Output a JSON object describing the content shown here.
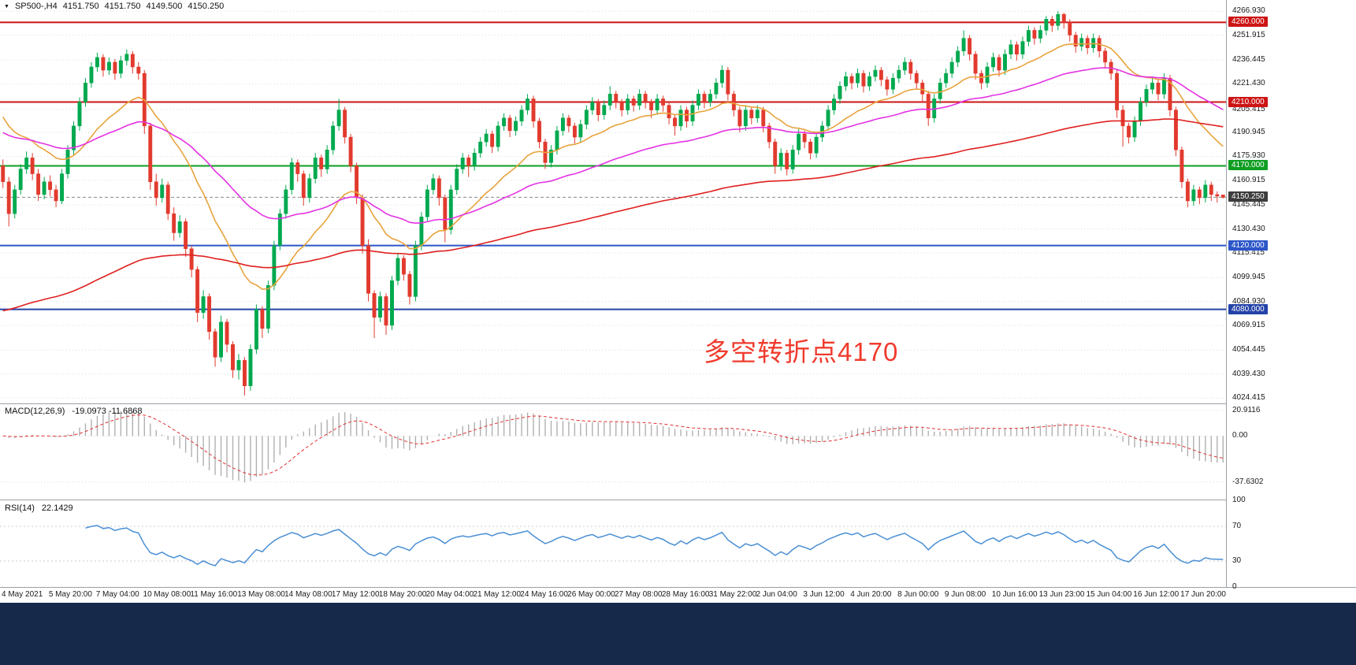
{
  "quote_bar": {
    "symbol": "SP500-,H4",
    "open": "4151.750",
    "high": "4151.750",
    "low": "4149.500",
    "close": "4150.250"
  },
  "annotation": {
    "text": "多空转折点4170",
    "color": "#f03b2e"
  },
  "colors": {
    "up": "#00a94f",
    "down": "#e23a2e",
    "ma_fast": "#e8a33d",
    "ma_mid": "#e333e3",
    "ma_slow": "#e02020",
    "macd_hist": "#b0b0b0",
    "macd_signal": "#e03030",
    "rsi_line": "#4a8fd4",
    "grid": "#dcdcdc"
  },
  "chart_data": {
    "type": "candlestick",
    "symbol": "SP500-",
    "timeframe": "H4",
    "price_range": [
      4024.415,
      4266.93
    ],
    "grid_prices": [
      4266.93,
      4251.915,
      4236.445,
      4221.43,
      4205.415,
      4190.945,
      4175.93,
      4160.915,
      4145.445,
      4130.43,
      4115.415,
      4099.945,
      4084.93,
      4069.915,
      4054.445,
      4039.43,
      4024.415
    ],
    "levels": [
      {
        "price": 4260.0,
        "label": "4260.000",
        "color": "#cc1414",
        "style": "solid",
        "width": 2
      },
      {
        "price": 4210.0,
        "label": "4210.000",
        "color": "#cc1414",
        "style": "solid",
        "width": 2
      },
      {
        "price": 4170.0,
        "label": "4170.000",
        "color": "#0f9d22",
        "style": "solid",
        "width": 2
      },
      {
        "price": 4120.0,
        "label": "4120.000",
        "color": "#2c56c9",
        "style": "solid",
        "width": 2
      },
      {
        "price": 4080.0,
        "label": "4080.000",
        "color": "#2443a8",
        "style": "solid",
        "width": 2
      },
      {
        "price": 4150.25,
        "label": "4150.250",
        "color": "#8a8a8a",
        "badge": "#3d3d3d",
        "style": "dashed",
        "width": 1,
        "current": true
      }
    ],
    "moving_averages": [
      {
        "name": "ma-fast",
        "period": 20,
        "seed": 4205,
        "color": "#e8a33d"
      },
      {
        "name": "ma-mid",
        "period": 55,
        "seed": 4192,
        "color": "#e333e3"
      },
      {
        "name": "ma-slow",
        "period": 150,
        "seed": 4078,
        "color": "#e02020"
      }
    ],
    "macd": {
      "label": "MACD(12,26,9)",
      "values_text": "-19.0973 -11.6868",
      "fast": 12,
      "slow": 26,
      "signal_period": 9,
      "axis_labels": [
        {
          "text": "20.9116",
          "value": 20.9116
        },
        {
          "text": "0.00",
          "value": 0
        },
        {
          "text": "-37.6302",
          "value": -37.6302
        }
      ]
    },
    "rsi": {
      "label": "RSI(14)",
      "value_text": "22.1429",
      "period": 14,
      "levels": [
        70,
        30
      ],
      "axis_labels": [
        {
          "text": "100",
          "value": 100
        },
        {
          "text": "70",
          "value": 70
        },
        {
          "text": "30",
          "value": 30
        },
        {
          "text": "0",
          "value": 0
        }
      ]
    },
    "time_labels": [
      "4 May 2021",
      "5 May 20:00",
      "7 May 04:00",
      "10 May 08:00",
      "11 May 16:00",
      "13 May 08:00",
      "14 May 08:00",
      "17 May 12:00",
      "18 May 20:00",
      "20 May 04:00",
      "21 May 12:00",
      "24 May 16:00",
      "26 May 00:00",
      "27 May 08:00",
      "28 May 16:00",
      "31 May 22:00",
      "2 Jun 04:00",
      "3 Jun 12:00",
      "4 Jun 20:00",
      "8 Jun 00:00",
      "9 Jun 08:00",
      "10 Jun 16:00",
      "13 Jun 23:00",
      "15 Jun 04:00",
      "16 Jun 12:00",
      "17 Jun 20:00"
    ],
    "candles": [
      [
        4170,
        4174,
        4156,
        4160
      ],
      [
        4160,
        4163,
        4132,
        4140
      ],
      [
        4140,
        4158,
        4137,
        4155
      ],
      [
        4155,
        4171,
        4152,
        4168
      ],
      [
        4168,
        4179,
        4165,
        4175
      ],
      [
        4175,
        4178,
        4161,
        4165
      ],
      [
        4165,
        4168,
        4148,
        4152
      ],
      [
        4152,
        4163,
        4149,
        4160
      ],
      [
        4160,
        4164,
        4151,
        4155
      ],
      [
        4155,
        4158,
        4144,
        4148
      ],
      [
        4148,
        4168,
        4146,
        4165
      ],
      [
        4165,
        4183,
        4162,
        4180
      ],
      [
        4180,
        4198,
        4177,
        4195
      ],
      [
        4195,
        4213,
        4192,
        4210
      ],
      [
        4210,
        4225,
        4207,
        4222
      ],
      [
        4222,
        4235,
        4219,
        4232
      ],
      [
        4232,
        4241,
        4229,
        4238
      ],
      [
        4238,
        4240,
        4226,
        4230
      ],
      [
        4230,
        4238,
        4227,
        4235
      ],
      [
        4235,
        4237,
        4224,
        4228
      ],
      [
        4228,
        4239,
        4225,
        4236
      ],
      [
        4236,
        4243,
        4233,
        4240
      ],
      [
        4240,
        4242,
        4228,
        4232
      ],
      [
        4232,
        4235,
        4224,
        4228
      ],
      [
        4228,
        4230,
        4190,
        4195
      ],
      [
        4195,
        4197,
        4155,
        4160
      ],
      [
        4160,
        4165,
        4145,
        4150
      ],
      [
        4150,
        4162,
        4147,
        4158
      ],
      [
        4158,
        4160,
        4136,
        4140
      ],
      [
        4140,
        4144,
        4123,
        4128
      ],
      [
        4128,
        4139,
        4125,
        4135
      ],
      [
        4135,
        4137,
        4113,
        4118
      ],
      [
        4118,
        4120,
        4100,
        4105
      ],
      [
        4105,
        4107,
        4072,
        4078
      ],
      [
        4078,
        4092,
        4074,
        4088
      ],
      [
        4088,
        4090,
        4061,
        4066
      ],
      [
        4066,
        4068,
        4044,
        4050
      ],
      [
        4050,
        4076,
        4047,
        4072
      ],
      [
        4072,
        4074,
        4053,
        4058
      ],
      [
        4058,
        4060,
        4037,
        4042
      ],
      [
        4042,
        4052,
        4036,
        4048
      ],
      [
        4048,
        4050,
        4026,
        4032
      ],
      [
        4032,
        4058,
        4029,
        4055
      ],
      [
        4055,
        4083,
        4052,
        4080
      ],
      [
        4080,
        4082,
        4062,
        4068
      ],
      [
        4068,
        4098,
        4065,
        4095
      ],
      [
        4095,
        4123,
        4092,
        4120
      ],
      [
        4120,
        4143,
        4117,
        4140
      ],
      [
        4140,
        4158,
        4137,
        4155
      ],
      [
        4155,
        4175,
        4152,
        4172
      ],
      [
        4172,
        4174,
        4160,
        4165
      ],
      [
        4165,
        4167,
        4145,
        4150
      ],
      [
        4150,
        4165,
        4147,
        4162
      ],
      [
        4162,
        4178,
        4159,
        4175
      ],
      [
        4175,
        4177,
        4163,
        4168
      ],
      [
        4168,
        4183,
        4165,
        4180
      ],
      [
        4180,
        4198,
        4177,
        4195
      ],
      [
        4195,
        4212,
        4192,
        4205
      ],
      [
        4205,
        4207,
        4184,
        4188
      ],
      [
        4188,
        4190,
        4166,
        4170
      ],
      [
        4170,
        4172,
        4146,
        4150
      ],
      [
        4150,
        4152,
        4115,
        4120
      ],
      [
        4120,
        4124,
        4085,
        4090
      ],
      [
        4090,
        4092,
        4062,
        4075
      ],
      [
        4075,
        4091,
        4072,
        4088
      ],
      [
        4088,
        4090,
        4064,
        4070
      ],
      [
        4070,
        4101,
        4067,
        4098
      ],
      [
        4098,
        4115,
        4095,
        4112
      ],
      [
        4112,
        4114,
        4098,
        4102
      ],
      [
        4102,
        4104,
        4083,
        4088
      ],
      [
        4088,
        4123,
        4085,
        4120
      ],
      [
        4120,
        4141,
        4117,
        4138
      ],
      [
        4138,
        4158,
        4135,
        4155
      ],
      [
        4155,
        4165,
        4152,
        4162
      ],
      [
        4162,
        4164,
        4145,
        4150
      ],
      [
        4150,
        4152,
        4122,
        4130
      ],
      [
        4130,
        4158,
        4127,
        4155
      ],
      [
        4155,
        4171,
        4152,
        4168
      ],
      [
        4168,
        4178,
        4165,
        4175
      ],
      [
        4175,
        4177,
        4163,
        4170
      ],
      [
        4170,
        4181,
        4167,
        4178
      ],
      [
        4178,
        4188,
        4175,
        4185
      ],
      [
        4185,
        4193,
        4182,
        4190
      ],
      [
        4190,
        4192,
        4178,
        4182
      ],
      [
        4182,
        4198,
        4179,
        4195
      ],
      [
        4195,
        4203,
        4192,
        4200
      ],
      [
        4200,
        4202,
        4188,
        4192
      ],
      [
        4192,
        4201,
        4189,
        4198
      ],
      [
        4198,
        4208,
        4195,
        4205
      ],
      [
        4205,
        4215,
        4202,
        4212
      ],
      [
        4212,
        4214,
        4194,
        4198
      ],
      [
        4198,
        4200,
        4181,
        4185
      ],
      [
        4185,
        4187,
        4168,
        4172
      ],
      [
        4172,
        4183,
        4169,
        4180
      ],
      [
        4180,
        4195,
        4177,
        4192
      ],
      [
        4192,
        4203,
        4189,
        4200
      ],
      [
        4200,
        4202,
        4191,
        4195
      ],
      [
        4195,
        4197,
        4184,
        4188
      ],
      [
        4188,
        4199,
        4185,
        4196
      ],
      [
        4196,
        4208,
        4193,
        4205
      ],
      [
        4205,
        4213,
        4202,
        4210
      ],
      [
        4210,
        4212,
        4198,
        4202
      ],
      [
        4202,
        4211,
        4199,
        4208
      ],
      [
        4208,
        4220,
        4205,
        4215
      ],
      [
        4215,
        4217,
        4206,
        4210
      ],
      [
        4210,
        4212,
        4201,
        4205
      ],
      [
        4205,
        4215,
        4202,
        4212
      ],
      [
        4212,
        4214,
        4204,
        4208
      ],
      [
        4208,
        4218,
        4205,
        4215
      ],
      [
        4215,
        4217,
        4206,
        4210
      ],
      [
        4210,
        4212,
        4200,
        4205
      ],
      [
        4205,
        4215,
        4202,
        4212
      ],
      [
        4212,
        4214,
        4204,
        4208
      ],
      [
        4208,
        4210,
        4196,
        4200
      ],
      [
        4200,
        4202,
        4189,
        4195
      ],
      [
        4195,
        4208,
        4192,
        4205
      ],
      [
        4205,
        4207,
        4194,
        4198
      ],
      [
        4198,
        4211,
        4195,
        4208
      ],
      [
        4208,
        4218,
        4205,
        4215
      ],
      [
        4215,
        4217,
        4206,
        4210
      ],
      [
        4210,
        4218,
        4207,
        4215
      ],
      [
        4215,
        4225,
        4212,
        4222
      ],
      [
        4222,
        4233,
        4219,
        4230
      ],
      [
        4230,
        4232,
        4211,
        4215
      ],
      [
        4215,
        4217,
        4201,
        4205
      ],
      [
        4205,
        4207,
        4191,
        4195
      ],
      [
        4195,
        4208,
        4192,
        4205
      ],
      [
        4205,
        4207,
        4196,
        4200
      ],
      [
        4200,
        4208,
        4197,
        4205
      ],
      [
        4205,
        4207,
        4191,
        4195
      ],
      [
        4195,
        4197,
        4181,
        4185
      ],
      [
        4185,
        4187,
        4165,
        4170
      ],
      [
        4170,
        4181,
        4167,
        4178
      ],
      [
        4178,
        4180,
        4164,
        4168
      ],
      [
        4168,
        4183,
        4165,
        4180
      ],
      [
        4180,
        4193,
        4177,
        4190
      ],
      [
        4190,
        4192,
        4181,
        4185
      ],
      [
        4185,
        4187,
        4174,
        4178
      ],
      [
        4178,
        4191,
        4175,
        4188
      ],
      [
        4188,
        4198,
        4185,
        4195
      ],
      [
        4195,
        4208,
        4192,
        4205
      ],
      [
        4205,
        4215,
        4202,
        4212
      ],
      [
        4212,
        4223,
        4209,
        4220
      ],
      [
        4220,
        4229,
        4217,
        4226
      ],
      [
        4226,
        4228,
        4218,
        4222
      ],
      [
        4222,
        4231,
        4219,
        4228
      ],
      [
        4228,
        4230,
        4216,
        4220
      ],
      [
        4220,
        4229,
        4217,
        4226
      ],
      [
        4226,
        4233,
        4223,
        4230
      ],
      [
        4230,
        4232,
        4220,
        4224
      ],
      [
        4224,
        4226,
        4214,
        4218
      ],
      [
        4218,
        4228,
        4215,
        4225
      ],
      [
        4225,
        4233,
        4222,
        4230
      ],
      [
        4230,
        4238,
        4227,
        4235
      ],
      [
        4235,
        4237,
        4224,
        4228
      ],
      [
        4228,
        4230,
        4218,
        4222
      ],
      [
        4222,
        4224,
        4210,
        4215
      ],
      [
        4215,
        4217,
        4195,
        4200
      ],
      [
        4200,
        4215,
        4197,
        4212
      ],
      [
        4212,
        4225,
        4209,
        4222
      ],
      [
        4222,
        4231,
        4219,
        4228
      ],
      [
        4228,
        4238,
        4225,
        4235
      ],
      [
        4235,
        4245,
        4232,
        4242
      ],
      [
        4242,
        4255,
        4239,
        4250
      ],
      [
        4250,
        4252,
        4236,
        4240
      ],
      [
        4240,
        4242,
        4224,
        4228
      ],
      [
        4228,
        4230,
        4218,
        4222
      ],
      [
        4222,
        4235,
        4219,
        4232
      ],
      [
        4232,
        4241,
        4229,
        4238
      ],
      [
        4238,
        4240,
        4226,
        4230
      ],
      [
        4230,
        4243,
        4227,
        4240
      ],
      [
        4240,
        4249,
        4237,
        4246
      ],
      [
        4246,
        4248,
        4236,
        4240
      ],
      [
        4240,
        4251,
        4237,
        4248
      ],
      [
        4248,
        4258,
        4245,
        4255
      ],
      [
        4255,
        4257,
        4246,
        4250
      ],
      [
        4250,
        4258,
        4247,
        4255
      ],
      [
        4255,
        4264,
        4252,
        4262
      ],
      [
        4262,
        4264,
        4254,
        4258
      ],
      [
        4258,
        4267,
        4255,
        4265
      ],
      [
        4265,
        4266,
        4256,
        4260
      ],
      [
        4260,
        4262,
        4248,
        4252
      ],
      [
        4252,
        4254,
        4241,
        4245
      ],
      [
        4245,
        4253,
        4242,
        4250
      ],
      [
        4250,
        4252,
        4240,
        4244
      ],
      [
        4244,
        4253,
        4241,
        4250
      ],
      [
        4250,
        4252,
        4238,
        4242
      ],
      [
        4242,
        4244,
        4231,
        4235
      ],
      [
        4235,
        4237,
        4224,
        4228
      ],
      [
        4228,
        4230,
        4200,
        4205
      ],
      [
        4205,
        4208,
        4182,
        4195
      ],
      [
        4195,
        4197,
        4184,
        4188
      ],
      [
        4188,
        4201,
        4185,
        4198
      ],
      [
        4198,
        4213,
        4195,
        4210
      ],
      [
        4210,
        4221,
        4207,
        4218
      ],
      [
        4218,
        4226,
        4215,
        4222
      ],
      [
        4222,
        4224,
        4211,
        4215
      ],
      [
        4215,
        4228,
        4212,
        4225
      ],
      [
        4225,
        4227,
        4201,
        4205
      ],
      [
        4205,
        4207,
        4176,
        4180
      ],
      [
        4180,
        4182,
        4156,
        4160
      ],
      [
        4160,
        4162,
        4144,
        4148
      ],
      [
        4148,
        4158,
        4145,
        4155
      ],
      [
        4155,
        4157,
        4146,
        4150
      ],
      [
        4150,
        4161,
        4147,
        4158
      ],
      [
        4158,
        4160,
        4148,
        4152
      ],
      [
        4152,
        4154,
        4147,
        4151
      ],
      [
        4151.75,
        4151.75,
        4149.5,
        4150.25
      ]
    ]
  }
}
